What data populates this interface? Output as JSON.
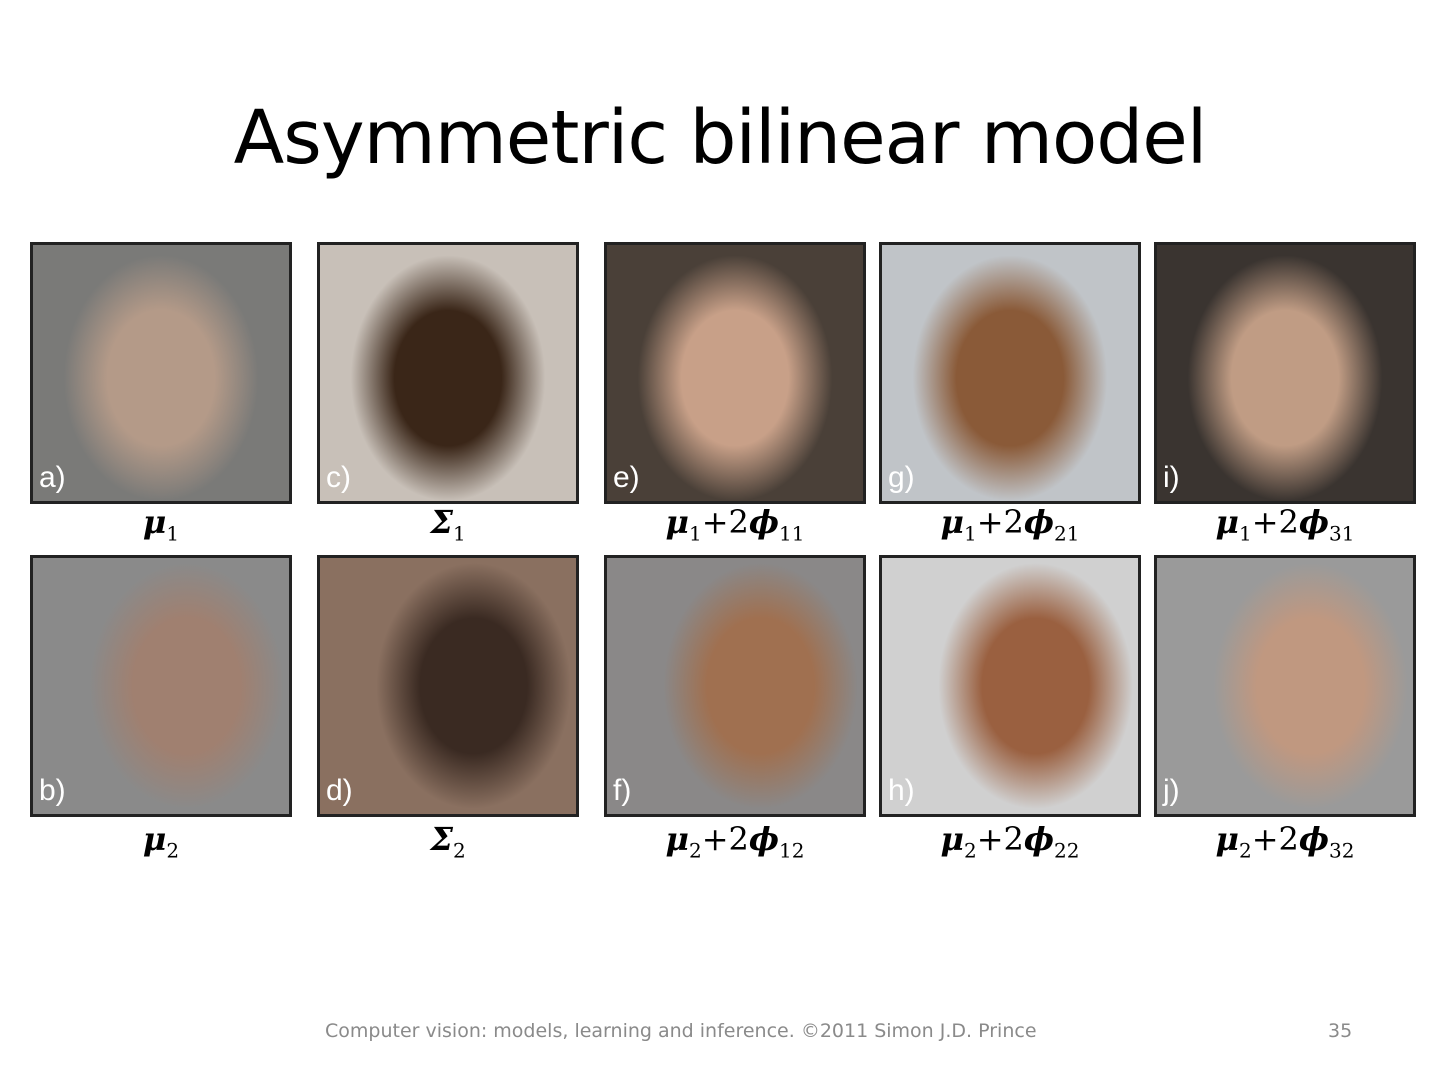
{
  "title": "Asymmetric bilinear model",
  "panels": [
    {
      "label": "a)",
      "cap": {
        "sym": "μ",
        "sym_sub": "1",
        "term": "",
        "term_sym": "",
        "term_sub": ""
      },
      "colors": [
        "#b49a88",
        "#7a7a78"
      ]
    },
    {
      "label": "c)",
      "cap": {
        "sym": "Σ",
        "sym_sub": "1",
        "term": "",
        "term_sym": "",
        "term_sub": ""
      },
      "colors": [
        "#3a2618",
        "#c8c0b8"
      ]
    },
    {
      "label": "e)",
      "cap": {
        "sym": "μ",
        "sym_sub": "1",
        "term": "+2",
        "term_sym": "ϕ",
        "term_sub": "11"
      },
      "colors": [
        "#c8a088",
        "#4a4038"
      ]
    },
    {
      "label": "g)",
      "cap": {
        "sym": "μ",
        "sym_sub": "1",
        "term": "+2",
        "term_sym": "ϕ",
        "term_sub": "21"
      },
      "colors": [
        "#8a5a38",
        "#c0c4c8"
      ]
    },
    {
      "label": "i)",
      "cap": {
        "sym": "μ",
        "sym_sub": "1",
        "term": "+2",
        "term_sym": "ϕ",
        "term_sub": "31"
      },
      "colors": [
        "#c09c84",
        "#3a3430"
      ]
    },
    {
      "label": "b)",
      "cap": {
        "sym": "μ",
        "sym_sub": "2",
        "term": "",
        "term_sym": "",
        "term_sub": ""
      },
      "colors": [
        "#a08070",
        "#8a8a8a"
      ]
    },
    {
      "label": "d)",
      "cap": {
        "sym": "Σ",
        "sym_sub": "2",
        "term": "",
        "term_sym": "",
        "term_sub": ""
      },
      "colors": [
        "#3a2a22",
        "#8a7060"
      ]
    },
    {
      "label": "f)",
      "cap": {
        "sym": "μ",
        "sym_sub": "2",
        "term": "+2",
        "term_sym": "ϕ",
        "term_sub": "12"
      },
      "colors": [
        "#a07050",
        "#8a8888"
      ]
    },
    {
      "label": "h)",
      "cap": {
        "sym": "μ",
        "sym_sub": "2",
        "term": "+2",
        "term_sym": "ϕ",
        "term_sub": "22"
      },
      "colors": [
        "#9a6040",
        "#d0d0d0"
      ]
    },
    {
      "label": "j)",
      "cap": {
        "sym": "μ",
        "sym_sub": "2",
        "term": "+2",
        "term_sym": "ϕ",
        "term_sub": "32"
      },
      "colors": [
        "#c09880",
        "#9a9a9a"
      ]
    }
  ],
  "footer": "Computer vision: models, learning and inference.  ©2011 Simon J.D. Prince",
  "page_number": "35"
}
